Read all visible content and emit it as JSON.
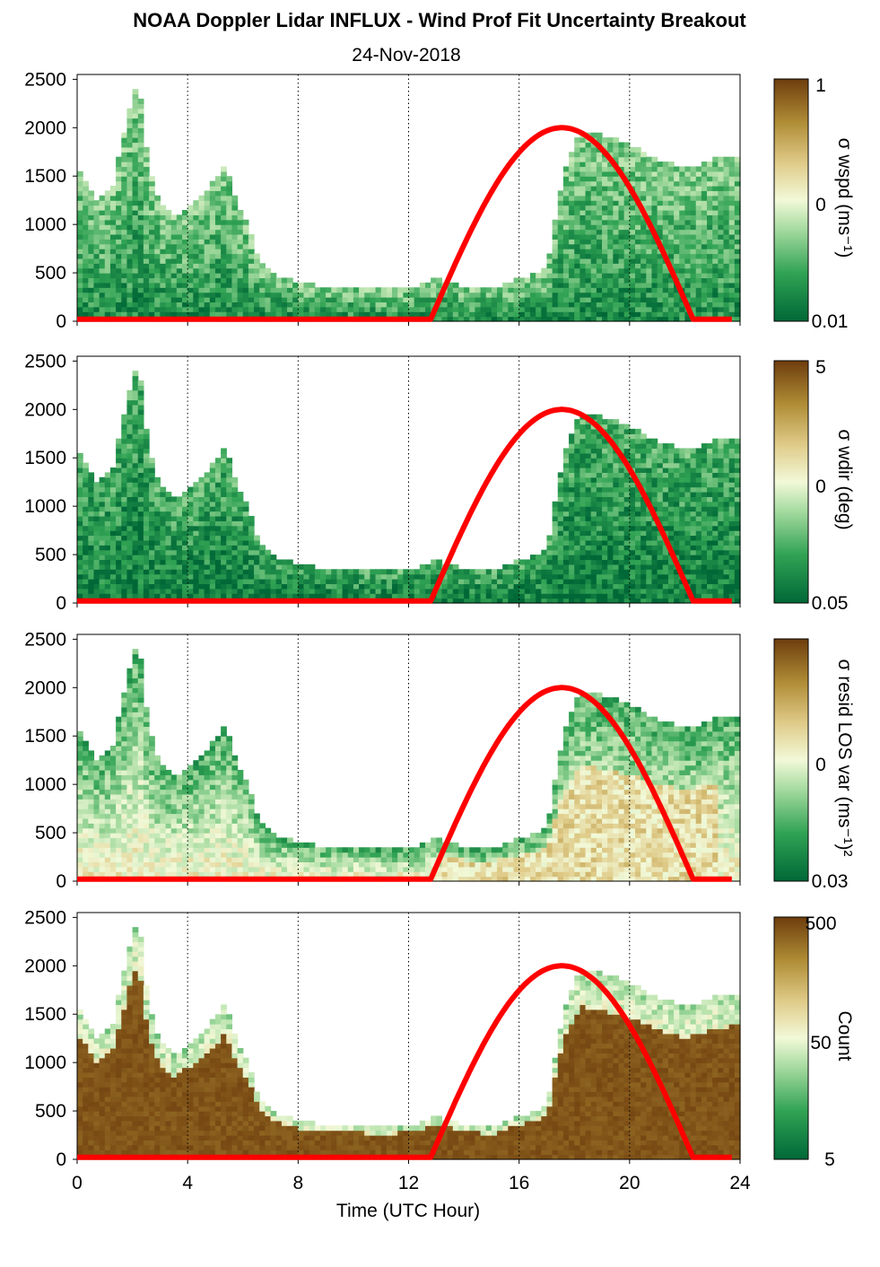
{
  "header": {
    "title": "NOAA Doppler Lidar INFLUX - Wind Prof Fit Uncertainty Breakout",
    "date": "24-Nov-2018"
  },
  "chart_data": {
    "type": "heatmap",
    "xlabel": "Time (UTC Hour)",
    "x_ticks": [
      "0",
      "4",
      "8",
      "12",
      "16",
      "20",
      "24"
    ],
    "y_ticks": [
      "0",
      "500",
      "1000",
      "1500",
      "2000",
      "2500"
    ],
    "xlim": [
      0,
      24
    ],
    "ylim": [
      0,
      2550
    ],
    "grid": "vertical dotted at 4, 8, 12, 16, 20, 24",
    "colormap": [
      "#006837",
      "#31a354",
      "#a6dba0",
      "#f2f9d8",
      "#e0cc8a",
      "#b08d36",
      "#6e3d0d"
    ],
    "overlay_line": {
      "color": "#ff0000",
      "description_points_x": [
        0,
        12.8,
        13.5,
        14.5,
        15.5,
        16.5,
        17.5,
        18.5,
        19.5,
        20.5,
        21.5,
        22.3,
        24
      ],
      "description_points_y": [
        20,
        20,
        650,
        1250,
        1650,
        1920,
        2000,
        1920,
        1650,
        1250,
        650,
        20,
        20
      ]
    },
    "panels": [
      {
        "id": "wspd",
        "colorbar_label": "σ wspd (ms⁻¹)",
        "colorbar_ticks": [
          "1",
          "0",
          "0.01"
        ],
        "top_profile": [
          [
            0,
            1600
          ],
          [
            0.75,
            1220
          ],
          [
            1.3,
            1400
          ],
          [
            1.9,
            2200
          ],
          [
            2.2,
            2500
          ],
          [
            2.6,
            1550
          ],
          [
            3.0,
            1200
          ],
          [
            3.5,
            1050
          ],
          [
            4.0,
            1150
          ],
          [
            4.5,
            1250
          ],
          [
            5.0,
            1450
          ],
          [
            5.4,
            1600
          ],
          [
            5.8,
            1200
          ],
          [
            6.2,
            1000
          ],
          [
            6.6,
            600
          ],
          [
            7.2,
            450
          ],
          [
            8.0,
            380
          ],
          [
            9.0,
            330
          ],
          [
            10.0,
            320
          ],
          [
            11.0,
            300
          ],
          [
            12.0,
            320
          ],
          [
            13.0,
            420
          ],
          [
            14.0,
            330
          ],
          [
            15.0,
            300
          ],
          [
            16.0,
            420
          ],
          [
            17.0,
            520
          ],
          [
            17.6,
            1500
          ],
          [
            18.2,
            1950
          ],
          [
            19.0,
            1900
          ],
          [
            20.0,
            1800
          ],
          [
            21.0,
            1650
          ],
          [
            22.0,
            1550
          ],
          [
            23.0,
            1650
          ],
          [
            23.8,
            1700
          ]
        ],
        "bottom_bias": 0.1,
        "top_bias": 0.3
      },
      {
        "id": "wdir",
        "colorbar_label": "σ wdir (deg)",
        "colorbar_ticks": [
          "5",
          "0",
          "0.05"
        ],
        "top_profile": [
          [
            0,
            1600
          ],
          [
            0.75,
            1220
          ],
          [
            1.3,
            1400
          ],
          [
            1.9,
            2200
          ],
          [
            2.2,
            2500
          ],
          [
            2.6,
            1550
          ],
          [
            3.0,
            1200
          ],
          [
            3.5,
            1050
          ],
          [
            4.0,
            1150
          ],
          [
            4.5,
            1250
          ],
          [
            5.0,
            1450
          ],
          [
            5.4,
            1600
          ],
          [
            5.8,
            1200
          ],
          [
            6.2,
            1000
          ],
          [
            6.6,
            600
          ],
          [
            7.2,
            450
          ],
          [
            8.0,
            380
          ],
          [
            9.0,
            330
          ],
          [
            10.0,
            320
          ],
          [
            11.0,
            300
          ],
          [
            12.0,
            320
          ],
          [
            13.0,
            420
          ],
          [
            14.0,
            330
          ],
          [
            15.0,
            300
          ],
          [
            16.0,
            420
          ],
          [
            17.0,
            520
          ],
          [
            17.6,
            1500
          ],
          [
            18.2,
            1950
          ],
          [
            19.0,
            1900
          ],
          [
            20.0,
            1800
          ],
          [
            21.0,
            1650
          ],
          [
            22.0,
            1550
          ],
          [
            23.0,
            1650
          ],
          [
            23.8,
            1700
          ]
        ],
        "bottom_bias": 0.05,
        "top_bias": 0.2
      },
      {
        "id": "resid",
        "colorbar_label": "σ resid LOS var (ms⁻¹)²",
        "colorbar_ticks": [
          "0",
          "0.03"
        ],
        "top_profile": [
          [
            0,
            1600
          ],
          [
            0.75,
            1220
          ],
          [
            1.3,
            1400
          ],
          [
            1.9,
            2200
          ],
          [
            2.2,
            2500
          ],
          [
            2.6,
            1550
          ],
          [
            3.0,
            1200
          ],
          [
            3.5,
            1050
          ],
          [
            4.0,
            1150
          ],
          [
            4.5,
            1250
          ],
          [
            5.0,
            1450
          ],
          [
            5.4,
            1600
          ],
          [
            5.8,
            1200
          ],
          [
            6.2,
            1000
          ],
          [
            6.6,
            600
          ],
          [
            7.2,
            450
          ],
          [
            8.0,
            380
          ],
          [
            9.0,
            330
          ],
          [
            10.0,
            320
          ],
          [
            11.0,
            300
          ],
          [
            12.0,
            320
          ],
          [
            13.0,
            420
          ],
          [
            14.0,
            330
          ],
          [
            15.0,
            300
          ],
          [
            16.0,
            420
          ],
          [
            17.0,
            520
          ],
          [
            17.6,
            1500
          ],
          [
            18.2,
            1950
          ],
          [
            19.0,
            1900
          ],
          [
            20.0,
            1800
          ],
          [
            21.0,
            1650
          ],
          [
            22.0,
            1550
          ],
          [
            23.0,
            1650
          ],
          [
            23.8,
            1700
          ]
        ],
        "bottom_bias": 0.55,
        "top_bias": 0.2
      },
      {
        "id": "count",
        "colorbar_label": "Count",
        "colorbar_ticks": [
          "500",
          "50",
          "5"
        ],
        "top_profile": [
          [
            0,
            1600
          ],
          [
            0.75,
            1220
          ],
          [
            1.3,
            1400
          ],
          [
            1.9,
            2200
          ],
          [
            2.2,
            2500
          ],
          [
            2.6,
            1550
          ],
          [
            3.0,
            1200
          ],
          [
            3.5,
            1050
          ],
          [
            4.0,
            1150
          ],
          [
            4.5,
            1250
          ],
          [
            5.0,
            1450
          ],
          [
            5.4,
            1600
          ],
          [
            5.8,
            1200
          ],
          [
            6.2,
            1000
          ],
          [
            6.6,
            600
          ],
          [
            7.2,
            450
          ],
          [
            8.0,
            380
          ],
          [
            9.0,
            330
          ],
          [
            10.0,
            320
          ],
          [
            11.0,
            300
          ],
          [
            12.0,
            320
          ],
          [
            13.0,
            420
          ],
          [
            14.0,
            330
          ],
          [
            15.0,
            300
          ],
          [
            16.0,
            420
          ],
          [
            17.0,
            520
          ],
          [
            17.6,
            1500
          ],
          [
            18.2,
            1950
          ],
          [
            19.0,
            1900
          ],
          [
            20.0,
            1800
          ],
          [
            21.0,
            1650
          ],
          [
            22.0,
            1550
          ],
          [
            23.0,
            1650
          ],
          [
            23.8,
            1700
          ]
        ],
        "bottom_bias": 0.98,
        "top_bias": 0.35
      }
    ]
  }
}
